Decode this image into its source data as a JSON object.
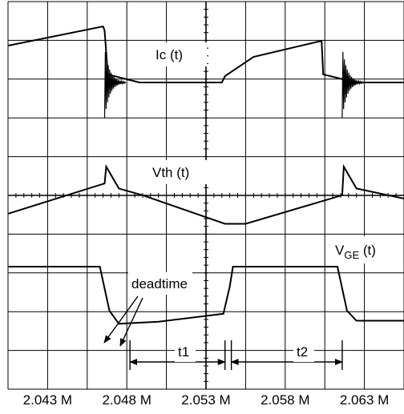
{
  "chart_data": {
    "type": "line",
    "title": "",
    "xlabel": "",
    "ylabel": "",
    "x_unit_label": "M",
    "xlim": [
      2.0405,
      2.0655
    ],
    "x_ticks": [
      2.043,
      2.048,
      2.053,
      2.058,
      2.063
    ],
    "x_tick_labels": [
      "2.043 M",
      "2.048 M",
      "2.053 M",
      "2.058 M",
      "2.063 M"
    ],
    "grid": true,
    "grid_divisions": {
      "x": 10,
      "y": 10
    },
    "line_color": "#000000",
    "series": [
      {
        "name": "Ic (t)",
        "points": [
          [
            2.0405,
            1.15
          ],
          [
            2.0465,
            1.75
          ],
          [
            2.0466,
            1.62
          ],
          [
            2.0468,
            0.25
          ],
          [
            2.0488,
            0.0
          ],
          [
            2.054,
            0.0
          ],
          [
            2.0542,
            0.2
          ],
          [
            2.056,
            0.8
          ],
          [
            2.0603,
            1.3
          ],
          [
            2.0604,
            0.25
          ],
          [
            2.0625,
            0.0
          ],
          [
            2.0655,
            0.0
          ]
        ],
        "ringing_at": [
          2.0466,
          2.0616
        ]
      },
      {
        "name": "Vth (t)",
        "points": [
          [
            2.0405,
            -0.45
          ],
          [
            2.0466,
            0.45
          ],
          [
            2.0467,
            0.95
          ],
          [
            2.0475,
            0.3
          ],
          [
            2.049,
            0.1
          ],
          [
            2.0542,
            -0.75
          ],
          [
            2.0555,
            -0.75
          ],
          [
            2.0616,
            0.1
          ],
          [
            2.0617,
            0.95
          ],
          [
            2.0625,
            0.3
          ],
          [
            2.0655,
            0.0
          ]
        ]
      },
      {
        "name": "VGE (t)",
        "points": [
          [
            2.0405,
            4.0
          ],
          [
            2.0463,
            4.0
          ],
          [
            2.0469,
            1.8
          ],
          [
            2.0475,
            1.15
          ],
          [
            2.05,
            1.25
          ],
          [
            2.0541,
            1.65
          ],
          [
            2.0545,
            3.0
          ],
          [
            2.0547,
            4.0
          ],
          [
            2.0613,
            4.0
          ],
          [
            2.0619,
            1.8
          ],
          [
            2.0625,
            1.3
          ],
          [
            2.0655,
            1.3
          ]
        ]
      }
    ],
    "annotations": [
      {
        "text": "deadtime",
        "type": "arrow-label"
      },
      {
        "text": "t1",
        "type": "interval",
        "from": 2.0482,
        "to": 2.0542
      },
      {
        "text": "t2",
        "type": "interval",
        "from": 2.0546,
        "to": 2.0616
      }
    ]
  },
  "labels": {
    "ic": "Ic (t)",
    "vth": "Vth (t)",
    "vge_main": "V",
    "vge_sub": "GE",
    "vge_tail": " (t)",
    "deadtime": "deadtime",
    "t1": "t1",
    "t2": "t2"
  }
}
